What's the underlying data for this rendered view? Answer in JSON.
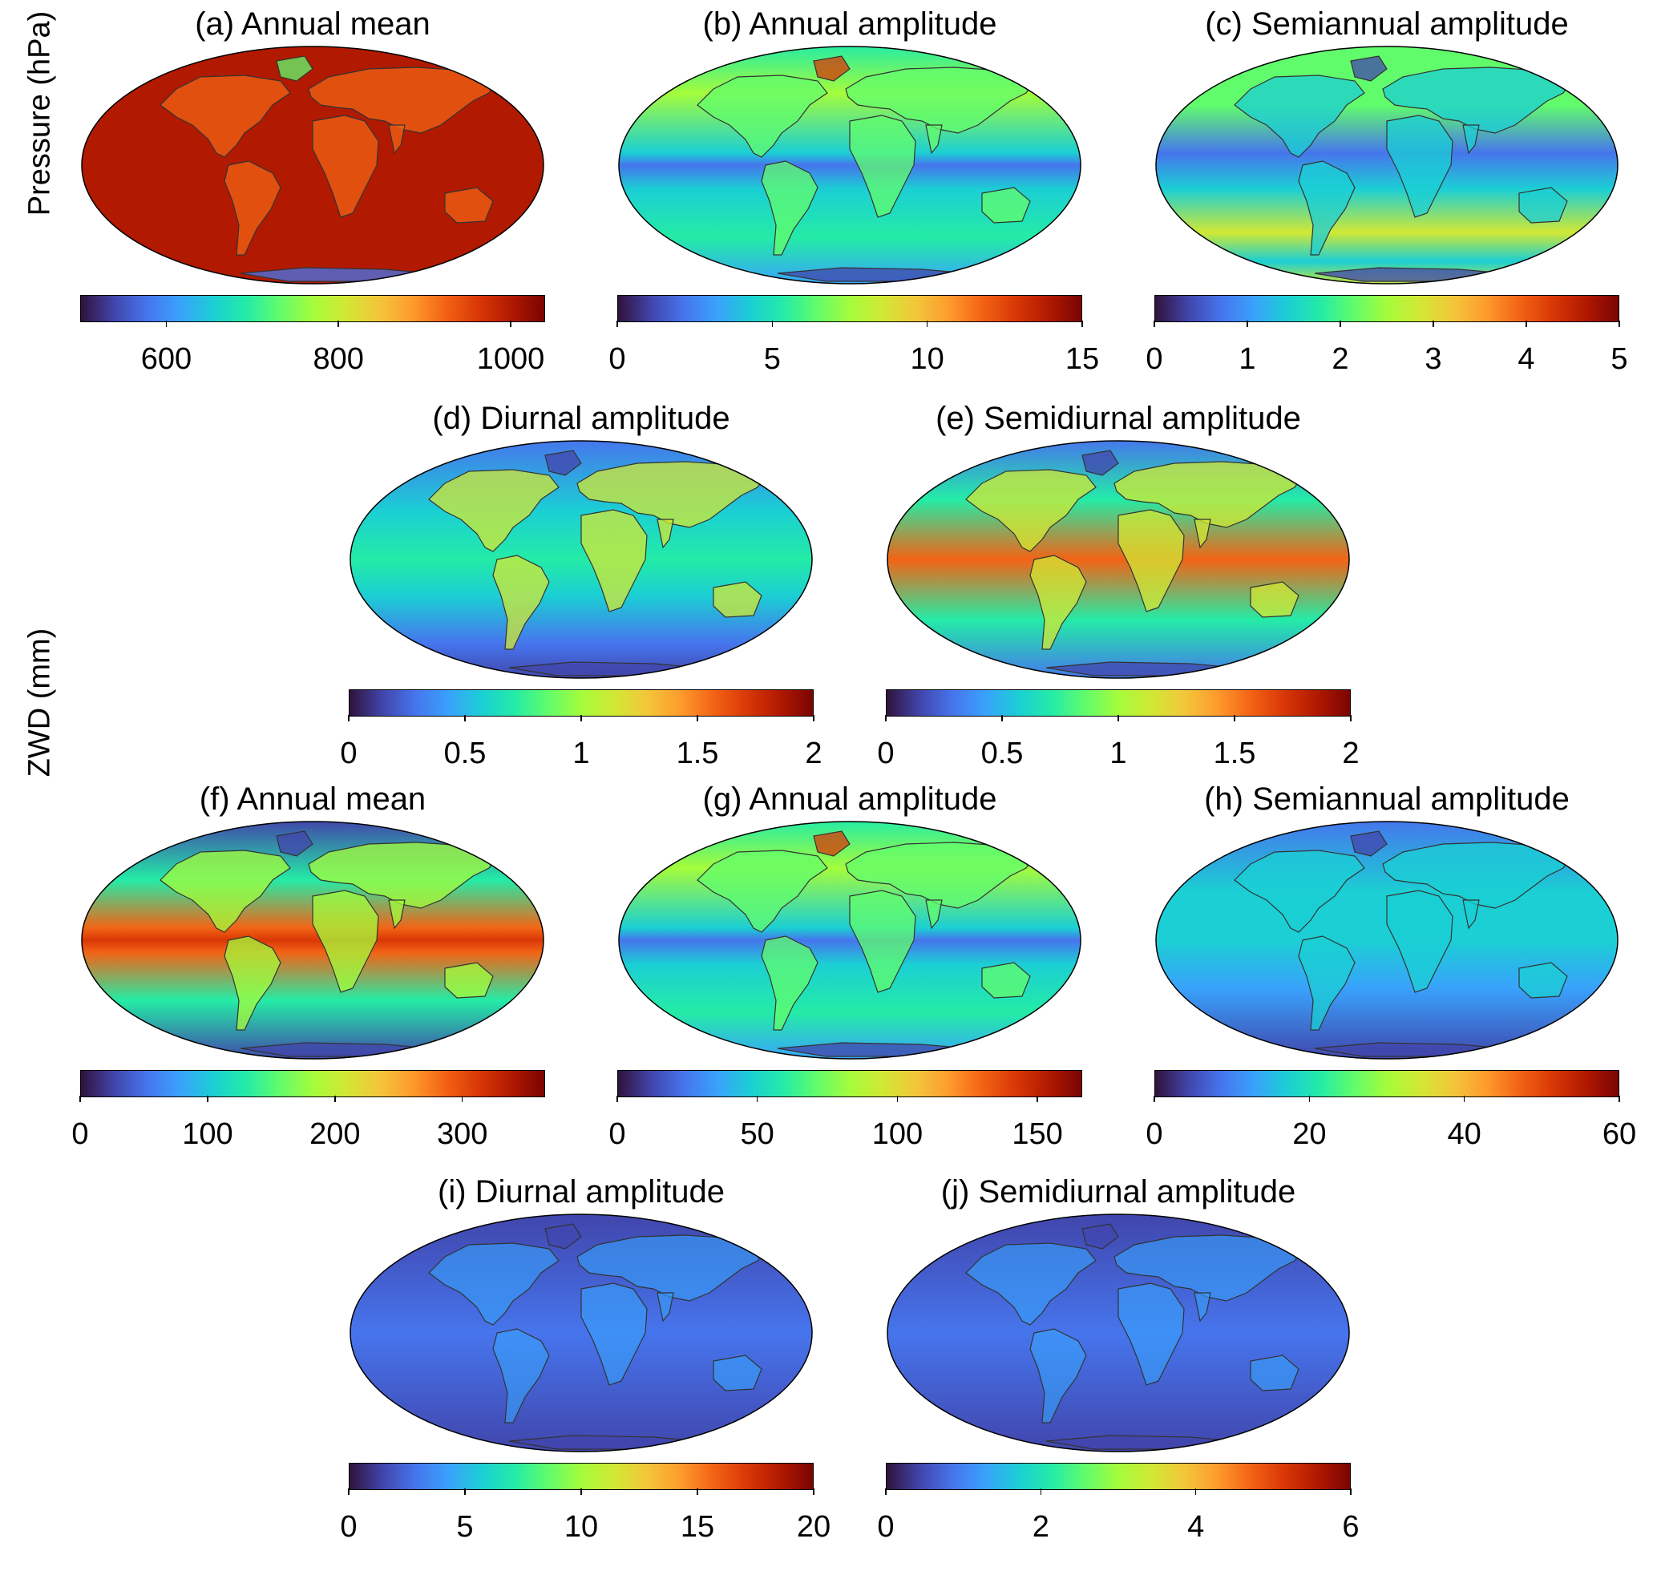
{
  "ylabels": {
    "pressure": "Pressure (hPa)",
    "zwd": "ZWD (mm)"
  },
  "colormap": [
    "#30123b",
    "#4145ab",
    "#4675ed",
    "#39a2fc",
    "#1bcfd4",
    "#24eca6",
    "#61fc6c",
    "#a4fc3b",
    "#d1e834",
    "#f3c63a",
    "#fe9b2d",
    "#f36315",
    "#d93806",
    "#b11901",
    "#7a0402"
  ],
  "panels": [
    {
      "id": "a",
      "title": "(a) Annual mean",
      "range": [
        500,
        1040
      ],
      "ticks": [
        {
          "value": 600,
          "label": "600"
        },
        {
          "value": 800,
          "label": "800"
        },
        {
          "value": 1000,
          "label": "1000"
        }
      ],
      "pattern": "pressure-mean"
    },
    {
      "id": "b",
      "title": "(b) Annual amplitude",
      "range": [
        0,
        15
      ],
      "ticks": [
        {
          "value": 0,
          "label": "0"
        },
        {
          "value": 5,
          "label": "5"
        },
        {
          "value": 10,
          "label": "10"
        },
        {
          "value": 15,
          "label": "15"
        }
      ],
      "pattern": "bands-low"
    },
    {
      "id": "c",
      "title": "(c) Semiannual amplitude",
      "range": [
        0,
        5
      ],
      "ticks": [
        {
          "value": 0,
          "label": "0"
        },
        {
          "value": 1,
          "label": "1"
        },
        {
          "value": 2,
          "label": "2"
        },
        {
          "value": 3,
          "label": "3"
        },
        {
          "value": 4,
          "label": "4"
        },
        {
          "value": 5,
          "label": "5"
        }
      ],
      "pattern": "bands-mid"
    },
    {
      "id": "d",
      "title": "(d) Diurnal amplitude",
      "range": [
        0,
        2
      ],
      "ticks": [
        {
          "value": 0,
          "label": "0"
        },
        {
          "value": 0.5,
          "label": "0.5"
        },
        {
          "value": 1,
          "label": "1"
        },
        {
          "value": 1.5,
          "label": "1.5"
        },
        {
          "value": 2,
          "label": "2"
        }
      ],
      "pattern": "land-high"
    },
    {
      "id": "e",
      "title": "(e) Semidiurnal amplitude",
      "range": [
        0,
        2
      ],
      "ticks": [
        {
          "value": 0,
          "label": "0"
        },
        {
          "value": 0.5,
          "label": "0.5"
        },
        {
          "value": 1,
          "label": "1"
        },
        {
          "value": 1.5,
          "label": "1.5"
        },
        {
          "value": 2,
          "label": "2"
        }
      ],
      "pattern": "equator-high"
    },
    {
      "id": "f",
      "title": "(f) Annual mean",
      "range": [
        0,
        365
      ],
      "ticks": [
        {
          "value": 0,
          "label": "0"
        },
        {
          "value": 100,
          "label": "100"
        },
        {
          "value": 200,
          "label": "200"
        },
        {
          "value": 300,
          "label": "300"
        }
      ],
      "pattern": "equator-strong"
    },
    {
      "id": "g",
      "title": "(g) Annual amplitude",
      "range": [
        0,
        166
      ],
      "ticks": [
        {
          "value": 0,
          "label": "0"
        },
        {
          "value": 50,
          "label": "50"
        },
        {
          "value": 100,
          "label": "100"
        },
        {
          "value": 150,
          "label": "150"
        }
      ],
      "pattern": "bands-low"
    },
    {
      "id": "h",
      "title": "(h) Semiannual amplitude",
      "range": [
        0,
        60
      ],
      "ticks": [
        {
          "value": 0,
          "label": "0"
        },
        {
          "value": 20,
          "label": "20"
        },
        {
          "value": 40,
          "label": "40"
        },
        {
          "value": 60,
          "label": "60"
        }
      ],
      "pattern": "dark-streaks"
    },
    {
      "id": "i",
      "title": "(i) Diurnal amplitude",
      "range": [
        0,
        20
      ],
      "ticks": [
        {
          "value": 0,
          "label": "0"
        },
        {
          "value": 5,
          "label": "5"
        },
        {
          "value": 10,
          "label": "10"
        },
        {
          "value": 15,
          "label": "15"
        },
        {
          "value": 20,
          "label": "20"
        }
      ],
      "pattern": "dark-land"
    },
    {
      "id": "j",
      "title": "(j) Semidiurnal amplitude",
      "range": [
        0,
        6
      ],
      "ticks": [
        {
          "value": 0,
          "label": "0"
        },
        {
          "value": 2,
          "label": "2"
        },
        {
          "value": 4,
          "label": "4"
        },
        {
          "value": 6,
          "label": "6"
        }
      ],
      "pattern": "dark-land"
    }
  ]
}
